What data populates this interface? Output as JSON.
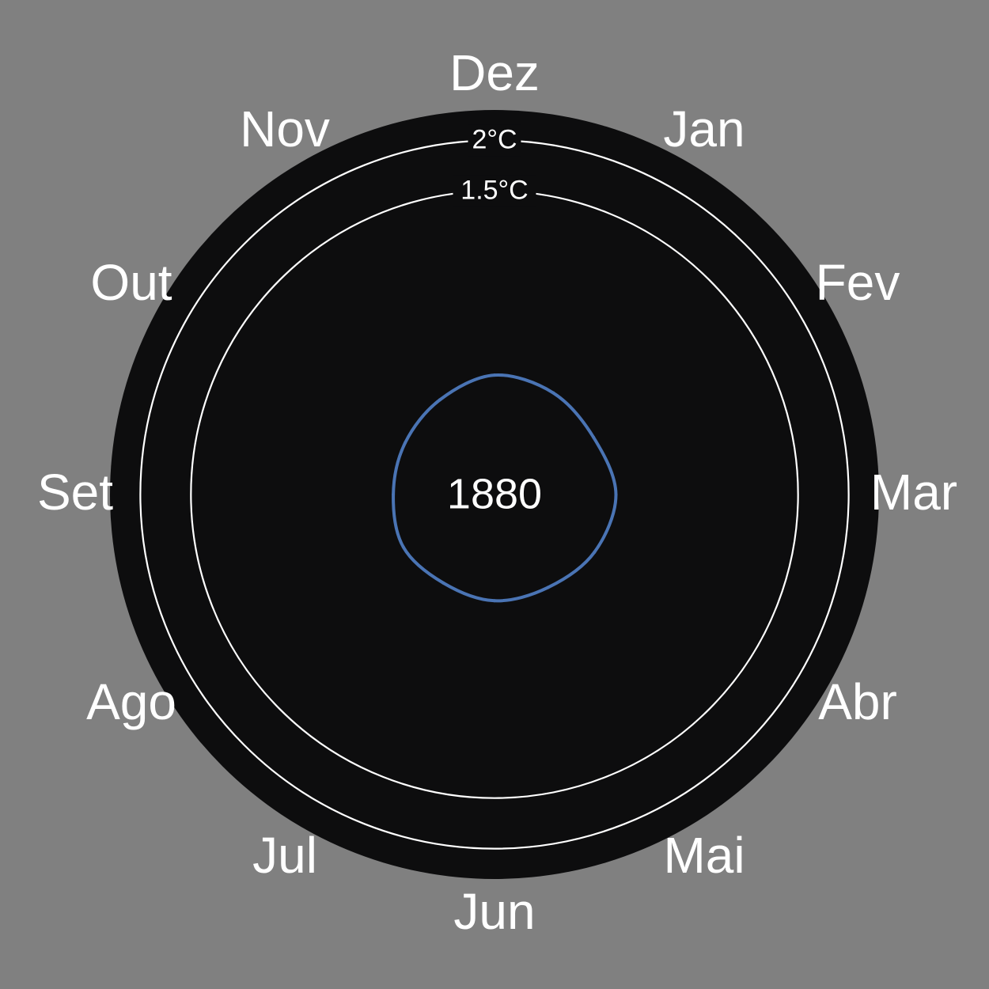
{
  "chart_data": {
    "type": "line",
    "subtype": "polar-climate-spiral",
    "year": "1880",
    "months": [
      "Dez",
      "Jan",
      "Fev",
      "Mar",
      "Abr",
      "Mai",
      "Jun",
      "Jul",
      "Ago",
      "Set",
      "Out",
      "Nov"
    ],
    "reference_rings": [
      {
        "label": "2°C",
        "value": 2.0
      },
      {
        "label": "1.5°C",
        "value": 1.5
      }
    ],
    "radial_range": [
      -1.5,
      2.3
    ],
    "series": [
      {
        "values": [
          -0.32,
          -0.34,
          -0.37,
          -0.3,
          -0.36,
          -0.44,
          -0.45,
          -0.49,
          -0.46,
          -0.5,
          -0.48,
          -0.42
        ]
      }
    ],
    "colors": {
      "background": "#808080",
      "panel": "#0d0d0e",
      "reference_rings": "#ffffff",
      "series_line": "#4a74b4",
      "text": "#ffffff"
    },
    "grid": false,
    "legend": "none"
  }
}
